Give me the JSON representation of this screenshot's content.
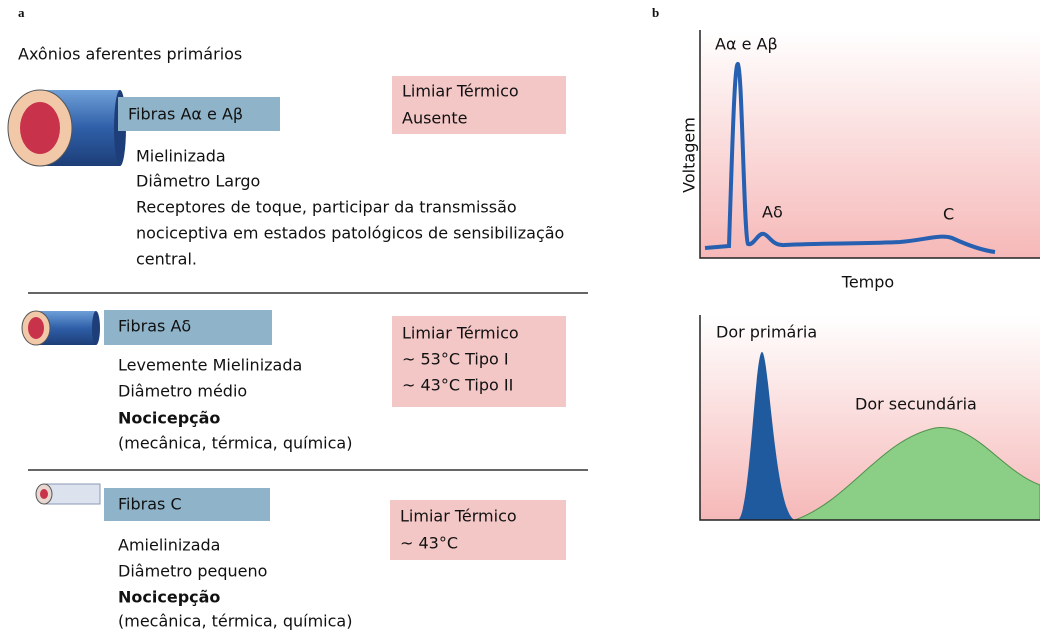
{
  "panel_a": {
    "label": "a",
    "title": "Axônios aferentes primários",
    "fibers": [
      {
        "name": "Fibras Aα e Aβ",
        "threshold": [
          "Limiar Térmico",
          "Ausente"
        ],
        "properties": [
          "Mielinizada",
          "Diâmetro Largo",
          "Receptores de toque, participar da transmissão",
          "nociceptiva em estados patológicos de sensibilização",
          "central."
        ]
      },
      {
        "name": "Fibras Aδ",
        "threshold": [
          "Limiar Térmico",
          "~ 53°C Tipo I",
          "~ 43°C Tipo II"
        ],
        "properties": [
          "Levemente Mielinizada",
          "Diâmetro médio"
        ],
        "function": "Nocicepção",
        "function_detail": "(mecânica, térmica, química)"
      },
      {
        "name": "Fibras C",
        "threshold": [
          "Limiar Térmico",
          "~ 43°C"
        ],
        "properties": [
          "Amielinizada",
          "Diâmetro pequeno"
        ],
        "function": "Nocicepção",
        "function_detail": "(mecânica, térmica, química)"
      }
    ]
  },
  "panel_b": {
    "label": "b",
    "top": {
      "y_label": "Voltagem",
      "x_label": "Tempo",
      "peaks": [
        "Aα e Aβ",
        "Aδ",
        "C"
      ]
    },
    "bottom": {
      "labels": [
        "Dor primária",
        "Dor secundária"
      ]
    }
  }
}
